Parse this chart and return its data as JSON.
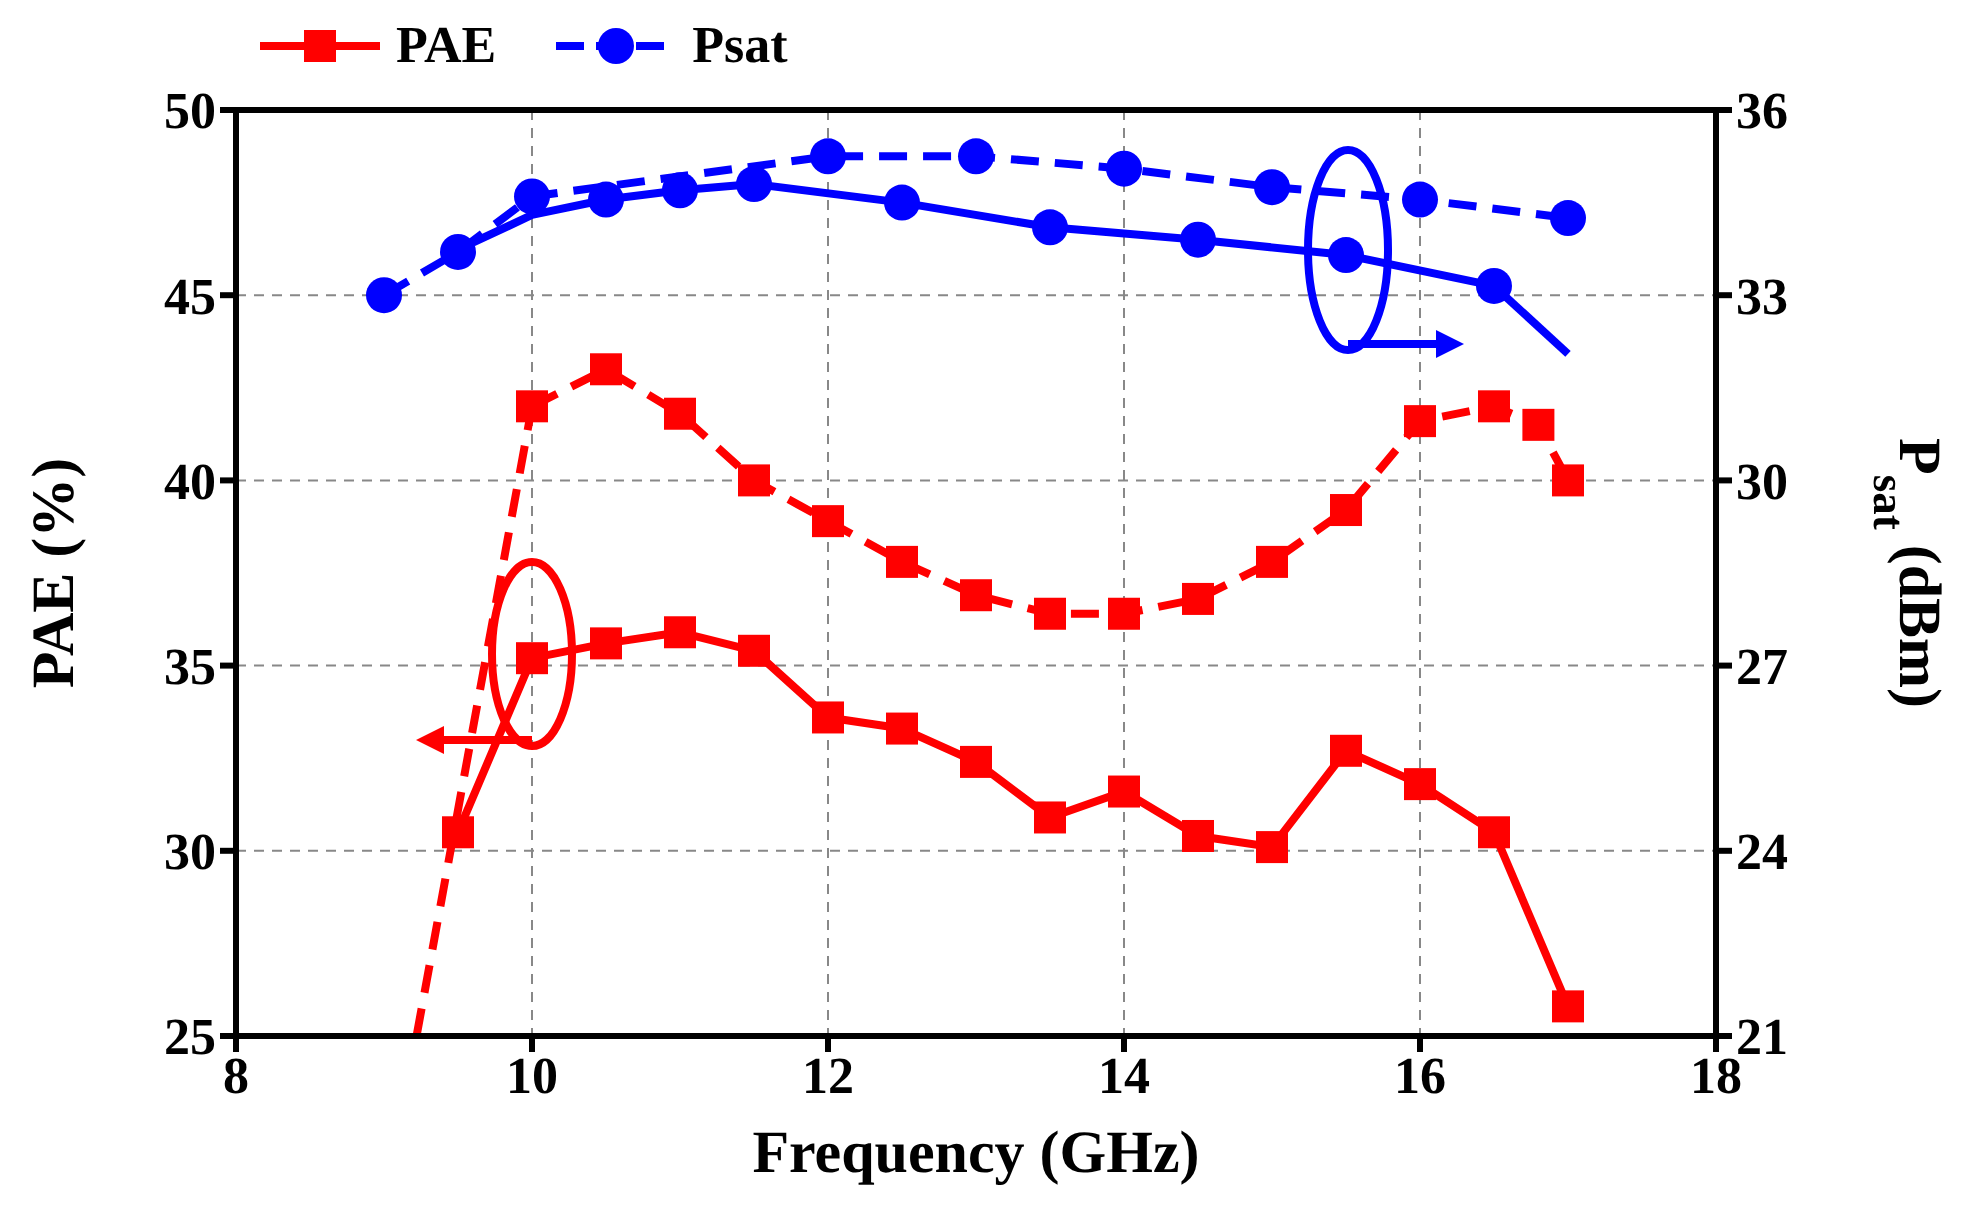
{
  "chart_data": {
    "type": "line",
    "xlabel": "Frequency (GHz)",
    "ylabel": "PAE (%)",
    "y2label": "P$_{sat}$ (dBm)",
    "xlim": [
      8,
      18
    ],
    "xticks": [
      8,
      10,
      12,
      14,
      16,
      18
    ],
    "ylim": [
      25,
      50
    ],
    "yticks": [
      25,
      30,
      35,
      40,
      45,
      50
    ],
    "y2lim": [
      21,
      36
    ],
    "y2ticks": [
      21,
      24,
      27,
      30,
      33,
      36
    ],
    "grid": true,
    "legend": "top left",
    "series": [
      {
        "name": "PAE",
        "color": "#ff0000",
        "marker": "square",
        "line_style": "solid",
        "x": [
          9.5,
          10,
          10.5,
          11,
          11.5,
          12,
          12.5,
          13,
          13.5,
          14,
          14.5,
          15,
          15.5,
          16,
          16.5,
          17
        ],
        "values": [
          30.5,
          35.2,
          35.6,
          35.9,
          35.4,
          33.6,
          33.3,
          32.4,
          30.9,
          31.6,
          30.4,
          30.1,
          32.7,
          31.8,
          30.5,
          25.8
        ]
      },
      {
        "color": "#ff0000",
        "marker": "square",
        "line_style": "dashed",
        "x": [
          10,
          10.5,
          11,
          11.5,
          12,
          12.5,
          13,
          13.5,
          14,
          14.5,
          15,
          15.5,
          16,
          16.5,
          16.8,
          17
        ],
        "values": [
          42,
          43,
          41.8,
          40,
          38.9,
          37.8,
          36.9,
          36.4,
          36.4,
          36.8,
          37.8,
          39.2,
          41.6,
          42,
          41.5,
          40
        ]
      },
      {
        "color": "#ff0000",
        "marker": "none",
        "line_style": "dashed",
        "x": [
          9.22,
          10
        ],
        "values": [
          25,
          42
        ]
      },
      {
        "name": "Psat",
        "color": "#0000ff",
        "marker": "circle",
        "line_style": "dashed",
        "axis": "y2",
        "x": [
          9,
          9.5,
          10,
          12,
          13,
          14,
          15,
          16,
          17
        ],
        "values": [
          33.0,
          33.7,
          34.6,
          35.25,
          35.25,
          35.05,
          34.75,
          34.55,
          34.25
        ]
      },
      {
        "color": "#0000ff",
        "marker": "none",
        "line_style": "solid",
        "axis": "y2",
        "x": [
          9.6,
          10,
          10.5
        ],
        "values": [
          33.85,
          34.3,
          34.55
        ]
      },
      {
        "color": "#0000ff",
        "marker": "circle",
        "line_style": "solid",
        "axis": "y2",
        "x": [
          10.5,
          11,
          11.5,
          12.5,
          13.5,
          14.5,
          15.5,
          16.5
        ],
        "values": [
          34.55,
          34.7,
          34.8,
          34.5,
          34.1,
          33.9,
          33.65,
          33.15
        ]
      },
      {
        "color": "#0000ff",
        "marker": "none",
        "line_style": "solid",
        "axis": "y2",
        "x": [
          16.5,
          17
        ],
        "values": [
          33.15,
          32.05
        ]
      }
    ]
  }
}
